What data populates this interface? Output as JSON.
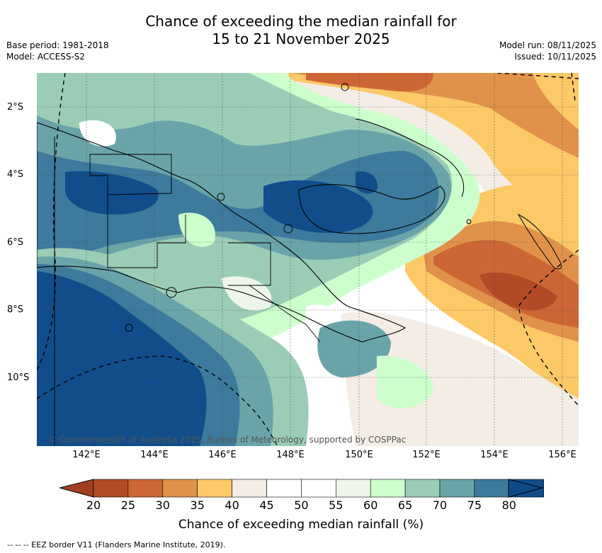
{
  "header": {
    "title_line1": "Chance of exceeding the median rainfall for",
    "title_line2": "15 to 21 November 2025",
    "base_period": "Base period: 1981-2018",
    "model": "Model: ACCESS-S2",
    "model_run": "Model run: 08/11/2025",
    "issued": "Issued: 10/11/2025"
  },
  "map": {
    "lat_labels": [
      "2°S",
      "4°S",
      "6°S",
      "8°S",
      "10°S"
    ],
    "lon_labels": [
      "142°E",
      "144°E",
      "146°E",
      "148°E",
      "150°E",
      "152°E",
      "154°E",
      "156°E"
    ],
    "copyright": "© Commonwealth of Australia 2025, Bureau of Meteorology, supported by COSPPac"
  },
  "colorbar": {
    "ticks": [
      "20",
      "25",
      "30",
      "35",
      "40",
      "45",
      "50",
      "55",
      "60",
      "65",
      "70",
      "75",
      "80"
    ],
    "colors": [
      "#b24a26",
      "#cd6634",
      "#e0924a",
      "#fdc967",
      "#f3ede6",
      "#ffffff",
      "#ffffff",
      "#eef6ec",
      "#ccffcc",
      "#9bcdb6",
      "#6aa4a9",
      "#3d7a9c",
      "#114d8a"
    ],
    "low_color": "#a13f22",
    "high_color": "#0e4a88",
    "label": "Chance of exceeding median rainfall (%)"
  },
  "legend_note": "--  --  -- EEZ border V11 (Flanders Marine Institute, 2019)."
}
